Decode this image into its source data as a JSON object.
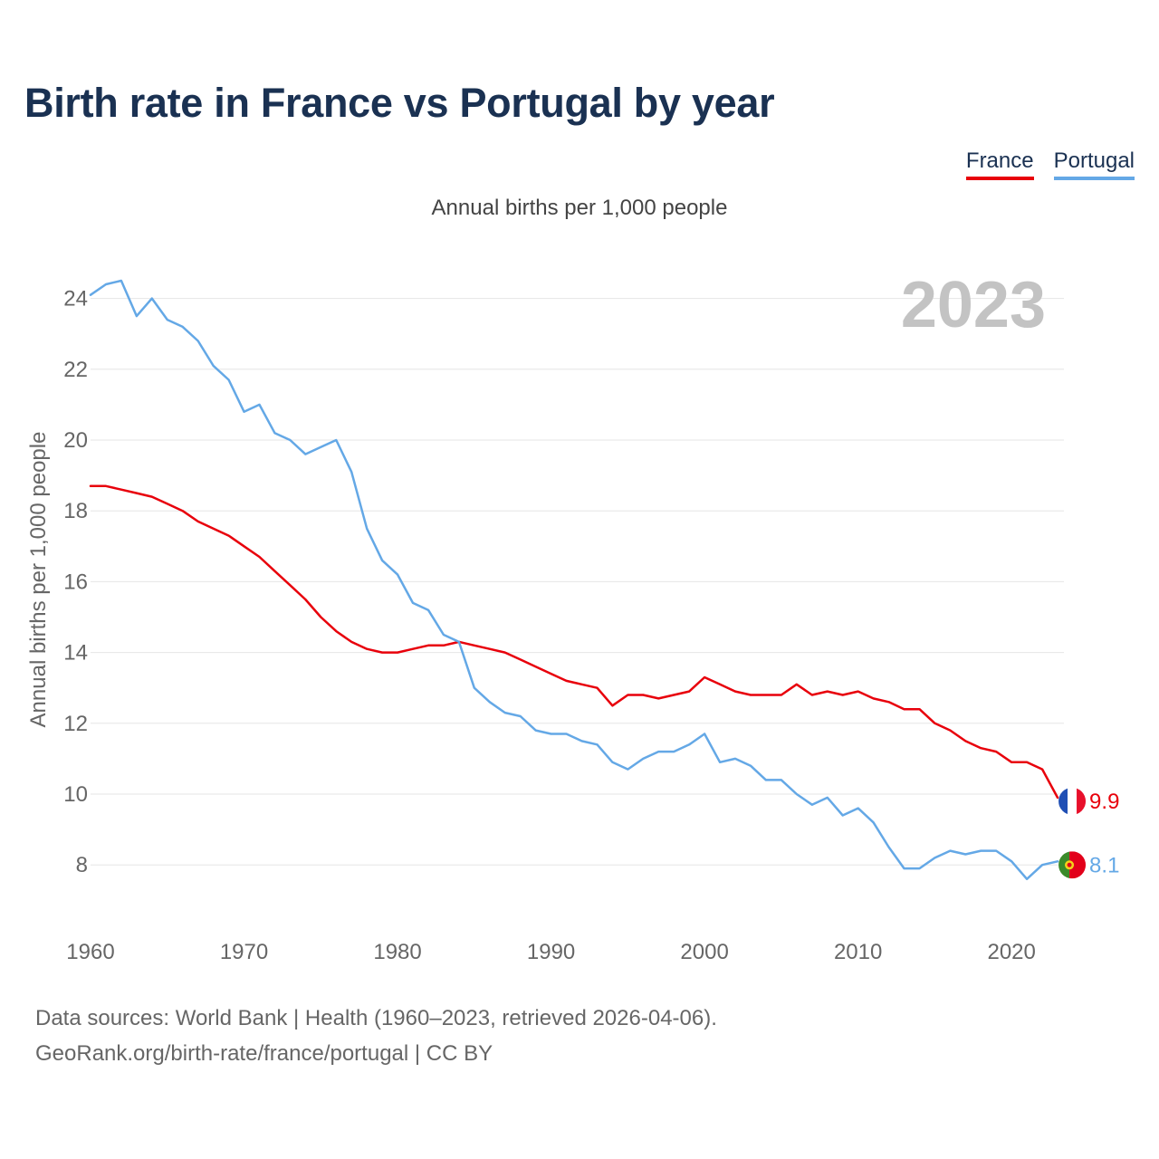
{
  "title": "Birth rate in France vs Portugal by year",
  "legend": [
    {
      "label": "France",
      "color": "#e8000b"
    },
    {
      "label": "Portugal",
      "color": "#64a8e6"
    }
  ],
  "subtitle": "Annual births per 1,000 people",
  "year_watermark": "2023",
  "sources": {
    "line1": "Data sources: World Bank | Health (1960–2023, retrieved 2026-04-06).",
    "line2": "GeoRank.org/birth-rate/france/portugal | CC BY"
  },
  "chart_data": {
    "type": "line",
    "ylabel": "Annual births per 1,000 people",
    "xlabel": "",
    "xlim": [
      1960,
      2024
    ],
    "ylim": [
      6.5,
      25
    ],
    "x_ticks": [
      1960,
      1970,
      1980,
      1990,
      2000,
      2010,
      2020
    ],
    "y_ticks": [
      8,
      10,
      12,
      14,
      16,
      18,
      20,
      22,
      24
    ],
    "grid": true,
    "x": [
      1960,
      1961,
      1962,
      1963,
      1964,
      1965,
      1966,
      1967,
      1968,
      1969,
      1970,
      1971,
      1972,
      1973,
      1974,
      1975,
      1976,
      1977,
      1978,
      1979,
      1980,
      1981,
      1982,
      1983,
      1984,
      1985,
      1986,
      1987,
      1988,
      1989,
      1990,
      1991,
      1992,
      1993,
      1994,
      1995,
      1996,
      1997,
      1998,
      1999,
      2000,
      2001,
      2002,
      2003,
      2004,
      2005,
      2006,
      2007,
      2008,
      2009,
      2010,
      2011,
      2012,
      2013,
      2014,
      2015,
      2016,
      2017,
      2018,
      2019,
      2020,
      2021,
      2022,
      2023
    ],
    "series": [
      {
        "name": "France",
        "color": "#e8000b",
        "flag": "france-flag",
        "end_label": "9.9",
        "values": [
          18.7,
          18.7,
          18.6,
          18.5,
          18.4,
          18.2,
          18.0,
          17.7,
          17.5,
          17.3,
          17.0,
          16.7,
          16.3,
          15.9,
          15.5,
          15.0,
          14.6,
          14.3,
          14.1,
          14.0,
          14.0,
          14.1,
          14.2,
          14.2,
          14.3,
          14.2,
          14.1,
          14.0,
          13.8,
          13.6,
          13.4,
          13.2,
          13.1,
          13.0,
          12.5,
          12.8,
          12.8,
          12.7,
          12.8,
          12.9,
          13.3,
          13.1,
          12.9,
          12.8,
          12.8,
          12.8,
          13.1,
          12.8,
          12.9,
          12.8,
          12.9,
          12.7,
          12.6,
          12.4,
          12.4,
          12.0,
          11.8,
          11.5,
          11.3,
          11.2,
          10.9,
          10.9,
          10.7,
          9.9
        ]
      },
      {
        "name": "Portugal",
        "color": "#64a8e6",
        "flag": "portugal-flag",
        "end_label": "8.1",
        "values": [
          24.1,
          24.4,
          24.5,
          23.5,
          24.0,
          23.4,
          23.2,
          22.8,
          22.1,
          21.7,
          20.8,
          21.0,
          20.2,
          20.0,
          19.6,
          19.8,
          20.0,
          19.1,
          17.5,
          16.6,
          16.2,
          15.4,
          15.2,
          14.5,
          14.3,
          13.0,
          12.6,
          12.3,
          12.2,
          11.8,
          11.7,
          11.7,
          11.5,
          11.4,
          10.9,
          10.7,
          11.0,
          11.2,
          11.2,
          11.4,
          11.7,
          10.9,
          11.0,
          10.8,
          10.4,
          10.4,
          10.0,
          9.7,
          9.9,
          9.4,
          9.6,
          9.2,
          8.5,
          7.9,
          7.9,
          8.2,
          8.4,
          8.3,
          8.4,
          8.4,
          8.1,
          7.6,
          8.0,
          8.1
        ]
      }
    ]
  }
}
